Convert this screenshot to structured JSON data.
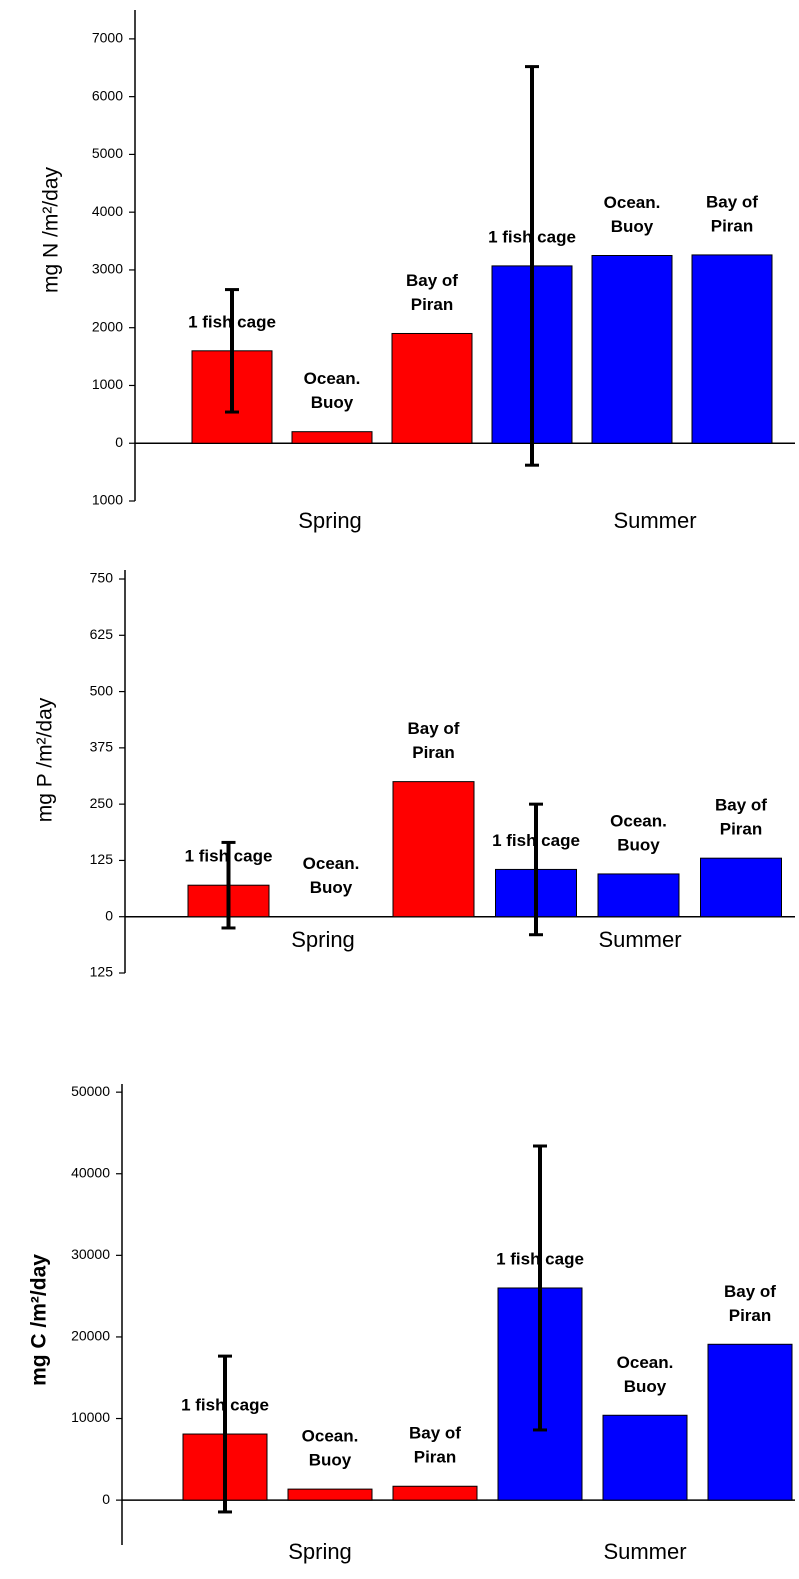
{
  "chart_data": [
    {
      "type": "bar",
      "y_label": "mg N /m²/day",
      "groups": [
        "Spring",
        "Summer"
      ],
      "categories": [
        [
          "1 fish cage"
        ],
        [
          "Ocean.",
          "Buoy"
        ],
        [
          "Bay of",
          "Piran"
        ],
        [
          "1 fish cage"
        ],
        [
          "Ocean.",
          "Buoy"
        ],
        [
          "Bay of",
          "Piran"
        ]
      ],
      "values": [
        1600,
        200,
        1900,
        3070,
        3250,
        3260
      ],
      "errors": [
        1060,
        null,
        null,
        3450,
        null,
        null
      ],
      "colors": [
        "#ff0000",
        "#ff0000",
        "#ff0000",
        "#0000ff",
        "#0000ff",
        "#0000ff"
      ],
      "ylim": [
        -1000,
        7500
      ],
      "yticks": [
        {
          "value": -1000,
          "label": "1000"
        },
        0,
        1000,
        2000,
        3000,
        4000,
        5000,
        6000,
        7000
      ]
    },
    {
      "type": "bar",
      "y_label": "mg P /m²/day",
      "groups": [
        "Spring",
        "Summer"
      ],
      "categories": [
        [
          "1 fish cage"
        ],
        [
          "Ocean.",
          "Buoy"
        ],
        [
          "Bay of",
          "Piran"
        ],
        [
          "1 fish cage"
        ],
        [
          "Ocean.",
          "Buoy"
        ],
        [
          "Bay of",
          "Piran"
        ]
      ],
      "values": [
        70,
        0,
        300,
        105,
        95,
        130
      ],
      "errors": [
        95,
        null,
        null,
        145,
        null,
        null
      ],
      "colors": [
        "#ff0000",
        "#ff0000",
        "#ff0000",
        "#0000ff",
        "#0000ff",
        "#0000ff"
      ],
      "ylim": [
        -125,
        770
      ],
      "yticks": [
        {
          "value": -125,
          "label": "125"
        },
        0,
        125,
        250,
        375,
        500,
        625,
        750
      ]
    },
    {
      "type": "bar",
      "y_label": "mg C /m²/day",
      "groups": [
        "Spring",
        "Summer"
      ],
      "categories": [
        [
          "1 fish cage"
        ],
        [
          "Ocean.",
          "Buoy"
        ],
        [
          "Bay of",
          "Piran"
        ],
        [
          "1 fish cage"
        ],
        [
          "Ocean.",
          "Buoy"
        ],
        [
          "Bay of",
          "Piran"
        ]
      ],
      "values": [
        8100,
        1350,
        1700,
        26000,
        10400,
        19100
      ],
      "errors": [
        9550,
        null,
        null,
        17400,
        null,
        null
      ],
      "colors": [
        "#ff0000",
        "#ff0000",
        "#ff0000",
        "#0000ff",
        "#0000ff",
        "#0000ff"
      ],
      "ylim": [
        -5500,
        51000
      ],
      "yticks": [
        0,
        10000,
        20000,
        30000,
        40000,
        50000
      ]
    }
  ]
}
